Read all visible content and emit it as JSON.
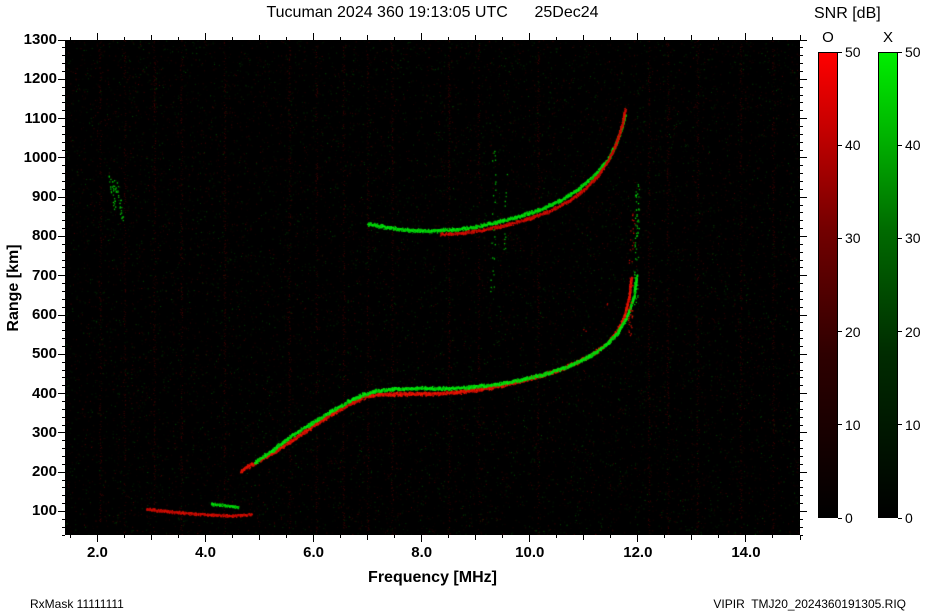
{
  "header": {
    "title": "Tucuman 2024 360 19:13:05 UTC      25Dec24"
  },
  "axes": {
    "x_label": "Frequency [MHz]",
    "y_label": "Range [km]"
  },
  "footer": {
    "left": "RxMask 11111111",
    "right": "VIPIR  TMJ20_2024360191305.RIQ"
  },
  "colorbar": {
    "title": "SNR [dB]",
    "range": [
      0,
      50
    ],
    "bars": [
      {
        "label": "O",
        "color": "#ff0000",
        "ticks": [
          0,
          10,
          20,
          30,
          40,
          50
        ]
      },
      {
        "label": "X",
        "color": "#00ee00",
        "ticks": [
          0,
          10,
          20,
          30,
          40,
          50
        ]
      }
    ]
  },
  "chart_data": {
    "type": "heatmap",
    "title": "Tucuman 2024 360 19:13:05 UTC 25Dec24",
    "xlabel": "Frequency [MHz]",
    "ylabel": "Range [km]",
    "xlim": [
      1.4,
      15.0
    ],
    "ylim": [
      40,
      1300
    ],
    "x_tick_values": [
      2,
      4,
      6,
      8,
      10,
      12,
      14
    ],
    "x_tick_labels": [
      "2.0",
      "4.0",
      "6.0",
      "8.0",
      "10.0",
      "12.0",
      "14.0"
    ],
    "x_minor_step": 0.5,
    "y_tick_values": [
      100,
      200,
      300,
      400,
      500,
      600,
      700,
      800,
      900,
      1000,
      1100,
      1200,
      1300
    ],
    "y_minor_step": 20,
    "grid": false,
    "legend": {
      "position": "right",
      "entries": [
        "O",
        "X"
      ]
    },
    "noise": {
      "seed": 1337,
      "speckles": 16000,
      "green_fraction": 0.45,
      "rfi_freqs": [
        2.05,
        2.5,
        3.05,
        3.55,
        4.35,
        5.55,
        6.05,
        6.55,
        7.0,
        7.45,
        8.5,
        9.05,
        10.15,
        12.2,
        12.55,
        13.1,
        13.9,
        14.5
      ]
    },
    "traces": [
      {
        "name": "F-trace first hop O-mode",
        "mode": "O",
        "style": "line",
        "width": 2.4,
        "brightness": 1.0,
        "points": [
          [
            4.65,
            205
          ],
          [
            5.0,
            232
          ],
          [
            5.35,
            260
          ],
          [
            5.7,
            292
          ],
          [
            6.05,
            325
          ],
          [
            6.4,
            355
          ],
          [
            6.7,
            378
          ],
          [
            6.95,
            393
          ],
          [
            7.2,
            399
          ],
          [
            7.6,
            400
          ],
          [
            8.1,
            400
          ],
          [
            8.6,
            404
          ],
          [
            9.1,
            412
          ],
          [
            9.6,
            426
          ],
          [
            10.1,
            443
          ],
          [
            10.5,
            460
          ],
          [
            10.9,
            482
          ],
          [
            11.2,
            505
          ],
          [
            11.45,
            532
          ],
          [
            11.62,
            562
          ],
          [
            11.75,
            600
          ],
          [
            11.83,
            645
          ],
          [
            11.87,
            695
          ]
        ]
      },
      {
        "name": "F-trace first hop X-mode",
        "mode": "X",
        "style": "line",
        "width": 2.2,
        "brightness": 0.95,
        "points": [
          [
            4.9,
            225
          ],
          [
            5.25,
            258
          ],
          [
            5.6,
            295
          ],
          [
            5.95,
            325
          ],
          [
            6.3,
            355
          ],
          [
            6.65,
            382
          ],
          [
            6.9,
            398
          ],
          [
            7.15,
            408
          ],
          [
            7.45,
            413
          ],
          [
            7.9,
            415
          ],
          [
            8.4,
            414
          ],
          [
            8.9,
            417
          ],
          [
            9.4,
            425
          ],
          [
            9.9,
            438
          ],
          [
            10.35,
            454
          ],
          [
            10.75,
            473
          ],
          [
            11.1,
            496
          ],
          [
            11.4,
            524
          ],
          [
            11.62,
            556
          ],
          [
            11.8,
            598
          ],
          [
            11.92,
            648
          ],
          [
            11.97,
            700
          ]
        ]
      },
      {
        "name": "F-trace second hop X-mode",
        "mode": "X",
        "style": "line",
        "width": 2.2,
        "brightness": 0.9,
        "points": [
          [
            7.0,
            833
          ],
          [
            7.35,
            824
          ],
          [
            7.75,
            817
          ],
          [
            8.15,
            815
          ],
          [
            8.55,
            818
          ],
          [
            8.95,
            825
          ],
          [
            9.35,
            836
          ],
          [
            9.75,
            850
          ],
          [
            10.15,
            868
          ],
          [
            10.55,
            892
          ],
          [
            10.9,
            922
          ],
          [
            11.2,
            958
          ],
          [
            11.45,
            998
          ],
          [
            11.6,
            1040
          ],
          [
            11.7,
            1080
          ],
          [
            11.76,
            1110
          ]
        ]
      },
      {
        "name": "F-trace second hop O-mode",
        "mode": "O",
        "style": "line",
        "width": 2.0,
        "brightness": 0.8,
        "points": [
          [
            8.35,
            806
          ],
          [
            8.75,
            810
          ],
          [
            9.15,
            818
          ],
          [
            9.55,
            830
          ],
          [
            9.95,
            845
          ],
          [
            10.35,
            865
          ],
          [
            10.7,
            890
          ],
          [
            11.0,
            920
          ],
          [
            11.25,
            955
          ],
          [
            11.45,
            995
          ],
          [
            11.6,
            1040
          ],
          [
            11.7,
            1085
          ],
          [
            11.76,
            1125
          ]
        ]
      },
      {
        "name": "E-trace O-mode",
        "mode": "O",
        "style": "line",
        "width": 1.6,
        "brightness": 0.8,
        "points": [
          [
            2.9,
            107
          ],
          [
            3.3,
            101
          ],
          [
            3.7,
            96
          ],
          [
            4.1,
            92
          ],
          [
            4.5,
            90
          ],
          [
            4.85,
            93
          ]
        ]
      },
      {
        "name": "Es-trace X-mode",
        "mode": "X",
        "style": "line",
        "width": 1.6,
        "brightness": 0.85,
        "points": [
          [
            4.1,
            120
          ],
          [
            4.35,
            116
          ],
          [
            4.6,
            112
          ]
        ]
      },
      {
        "name": "spread near foF2 O-mode",
        "mode": "O",
        "style": "dots",
        "density": 0.6,
        "brightness": 0.9,
        "points": [
          [
            11.84,
            545
          ],
          [
            11.88,
            700
          ]
        ]
      },
      {
        "name": "sparse spread above foF2 O-mode",
        "mode": "O",
        "style": "dots",
        "density": 0.18,
        "brightness": 0.7,
        "points": [
          [
            11.86,
            700
          ],
          [
            11.9,
            860
          ]
        ]
      },
      {
        "name": "spread near fxF2 X-mode",
        "mode": "X",
        "style": "dots",
        "density": 0.5,
        "brightness": 0.85,
        "points": [
          [
            11.95,
            620
          ],
          [
            11.99,
            935
          ]
        ]
      },
      {
        "name": "oblique echo dash A X-mode",
        "mode": "X",
        "style": "dots",
        "density": 0.65,
        "brightness": 0.8,
        "points": [
          [
            2.22,
            955
          ],
          [
            2.34,
            868
          ]
        ]
      },
      {
        "name": "oblique echo dash B X-mode",
        "mode": "X",
        "style": "dots",
        "density": 0.65,
        "brightness": 0.8,
        "points": [
          [
            2.32,
            945
          ],
          [
            2.46,
            842
          ]
        ]
      },
      {
        "name": "interference streak 9.3 MHz X-mode",
        "mode": "X",
        "style": "dots",
        "density": 0.22,
        "brightness": 0.7,
        "points": [
          [
            9.3,
            640
          ],
          [
            9.34,
            1020
          ]
        ]
      },
      {
        "name": "interference streak 9.5 MHz X-mode",
        "mode": "X",
        "style": "dots",
        "density": 0.18,
        "brightness": 0.65,
        "points": [
          [
            9.52,
            760
          ],
          [
            9.55,
            960
          ]
        ]
      },
      {
        "name": "scatter right of bend O-mode",
        "mode": "O",
        "style": "dots",
        "density": 0.1,
        "brightness": 0.6,
        "points": [
          [
            10.7,
            520
          ],
          [
            11.5,
            640
          ]
        ]
      }
    ]
  }
}
